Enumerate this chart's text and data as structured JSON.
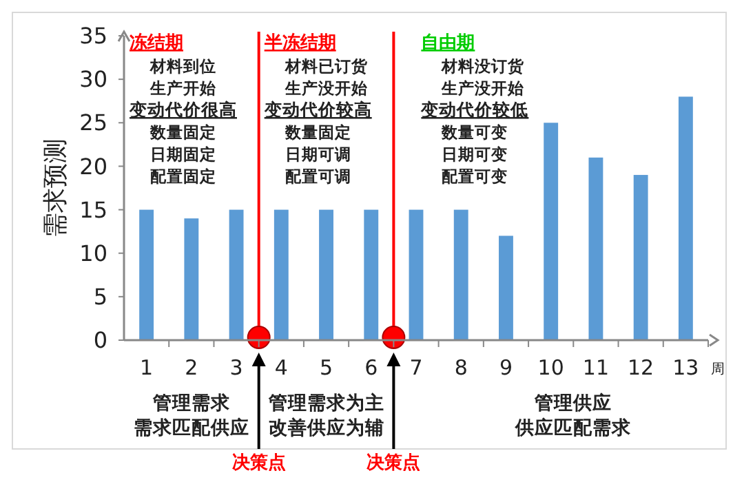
{
  "chart_data": {
    "type": "bar",
    "ylabel": "需求预测",
    "xlabel": "周",
    "x": [
      1,
      2,
      3,
      4,
      5,
      6,
      7,
      8,
      9,
      10,
      11,
      12,
      13
    ],
    "values": [
      15,
      14,
      15,
      15,
      15,
      15,
      15,
      15,
      12,
      25,
      21,
      19,
      28
    ],
    "color": "#5b9bd5",
    "xlim": [
      0.5,
      13.5
    ],
    "xticks": [
      1,
      2,
      3,
      4,
      5,
      6,
      7,
      8,
      9,
      10,
      11,
      12,
      13,
      {
        "value": 1.5,
        "label": null
      },
      {
        "value": 2.5,
        "label": null
      },
      {
        "value": 3.5,
        "label": null
      },
      {
        "value": 4.5,
        "label": null
      },
      {
        "value": 5.5,
        "label": null
      },
      {
        "value": 6.5,
        "label": null
      },
      {
        "value": 7.5,
        "label": null
      },
      {
        "value": 8.5,
        "label": null
      },
      {
        "value": 9.5,
        "label": null
      },
      {
        "value": 10.5,
        "label": null
      },
      {
        "value": 11.5,
        "label": null
      },
      {
        "value": 12.5,
        "label": null
      },
      {
        "value": 13.5,
        "label": null
      }
    ],
    "ylim": [
      0,
      35
    ],
    "yticks": [
      0,
      5,
      10,
      15,
      20,
      25,
      30,
      35
    ],
    "grid": false,
    "ref_lines": [
      {
        "axis": "x",
        "value": 3.5,
        "label": "决策点",
        "color": "#ff0000"
      },
      {
        "axis": "x",
        "value": 6.5,
        "label": "决策点",
        "color": "#ff0000"
      }
    ],
    "annotations": [
      "冻结期",
      "材料到位",
      "生产开始",
      "变动代价很高",
      "数量固定",
      "日期固定",
      "配置固定",
      "半冻结期",
      "材料已订货",
      "生产没开始",
      "变动代价较高",
      "数量固定",
      "日期可调",
      "配置可调",
      "自由期",
      "材料没订货",
      "生产没开始",
      "变动代价较低",
      "数量可变",
      "日期可变",
      "配置可变",
      "管理需求",
      "需求匹配供应",
      "管理需求为主",
      "改善供应为辅",
      "管理供应",
      "供应匹配需求"
    ]
  }
}
